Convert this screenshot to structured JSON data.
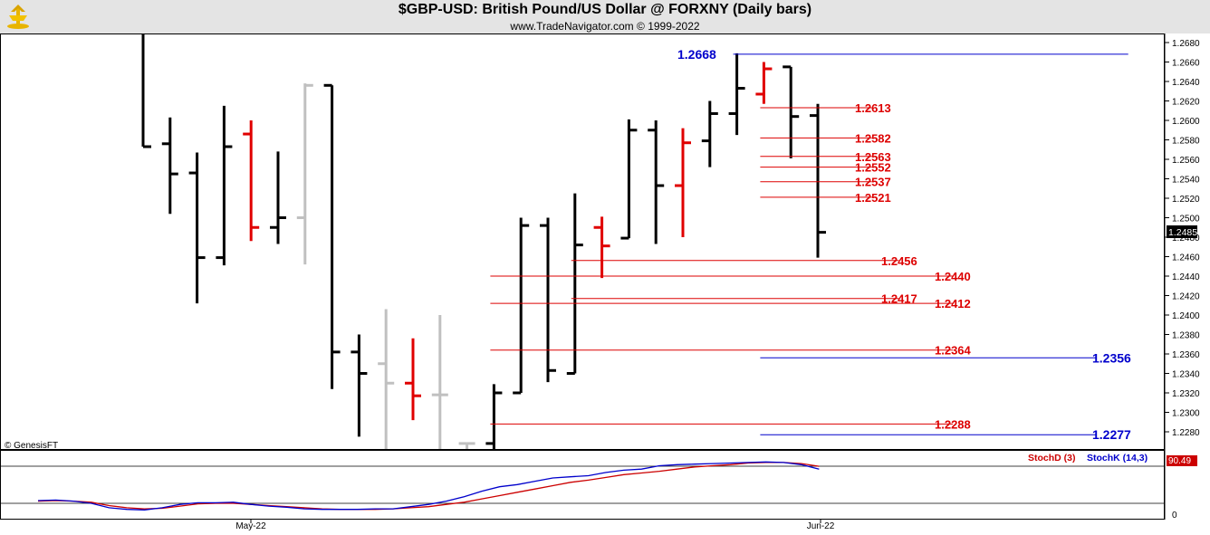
{
  "title": "$GBP-USD:  British Pound/US Dollar @ FORXNY  (Daily bars)",
  "subtitle": "www.TradeNavigator.com © 1999-2022",
  "watermark": "© GenesisFT",
  "colors": {
    "up_bar": "#000000",
    "down_bar": "#e00000",
    "inactive_bar": "#c0c0c0",
    "red_level": "#dd0000",
    "blue_level": "#0000cc",
    "stoch_d": "#cc0000",
    "stoch_k": "#0000cc"
  },
  "chart_data": [
    {
      "type": "ohlc",
      "instrument": "$GBP-USD",
      "ylim": [
        1.227,
        1.269
      ],
      "y_ticks": [
        "1.2280",
        "1.2300",
        "1.2320",
        "1.2340",
        "1.2360",
        "1.2380",
        "1.2400",
        "1.2420",
        "1.2440",
        "1.2460",
        "1.2480",
        "1.2500",
        "1.2520",
        "1.2540",
        "1.2560",
        "1.2580",
        "1.2600",
        "1.2620",
        "1.2640",
        "1.2660",
        "1.2680"
      ],
      "x_labels": [
        "May-22",
        "Jun-22"
      ],
      "last_price": "1.2485",
      "bars": [
        {
          "o": 1.269,
          "h": 1.269,
          "l": 1.2573,
          "c": 1.2573,
          "color": "black"
        },
        {
          "o": 1.2576,
          "h": 1.2603,
          "l": 1.2504,
          "c": 1.2545,
          "color": "black"
        },
        {
          "o": 1.2546,
          "h": 1.2567,
          "l": 1.2412,
          "c": 1.2459,
          "color": "black"
        },
        {
          "o": 1.2459,
          "h": 1.2615,
          "l": 1.2451,
          "c": 1.2573,
          "color": "black"
        },
        {
          "o": 1.2586,
          "h": 1.26,
          "l": 1.2476,
          "c": 1.249,
          "color": "red"
        },
        {
          "o": 1.249,
          "h": 1.2568,
          "l": 1.2473,
          "c": 1.25,
          "color": "black"
        },
        {
          "o": 1.25,
          "h": 1.2638,
          "l": 1.2452,
          "c": 1.2636,
          "color": "grey"
        },
        {
          "o": 1.2636,
          "h": 1.2636,
          "l": 1.2324,
          "c": 1.2362,
          "color": "black"
        },
        {
          "o": 1.2362,
          "h": 1.238,
          "l": 1.2275,
          "c": 1.234,
          "color": "black"
        },
        {
          "o": 1.235,
          "h": 1.2406,
          "l": 1.226,
          "c": 1.233,
          "color": "grey"
        },
        {
          "o": 1.233,
          "h": 1.2376,
          "l": 1.2292,
          "c": 1.2317,
          "color": "red"
        },
        {
          "o": 1.2318,
          "h": 1.24,
          "l": 1.226,
          "c": 1.2318,
          "color": "grey"
        },
        {
          "o": 1.2268,
          "h": 1.2268,
          "l": 1.2256,
          "c": 1.2268,
          "color": "grey"
        },
        {
          "o": 1.2268,
          "h": 1.2329,
          "l": 1.224,
          "c": 1.232,
          "color": "black"
        },
        {
          "o": 1.232,
          "h": 1.25,
          "l": 1.232,
          "c": 1.2492,
          "color": "black"
        },
        {
          "o": 1.2492,
          "h": 1.25,
          "l": 1.2331,
          "c": 1.2343,
          "color": "black"
        },
        {
          "o": 1.234,
          "h": 1.2525,
          "l": 1.234,
          "c": 1.2472,
          "color": "black"
        },
        {
          "o": 1.249,
          "h": 1.2501,
          "l": 1.2438,
          "c": 1.2471,
          "color": "red"
        },
        {
          "o": 1.2479,
          "h": 1.2601,
          "l": 1.2479,
          "c": 1.259,
          "color": "black"
        },
        {
          "o": 1.259,
          "h": 1.26,
          "l": 1.2473,
          "c": 1.2533,
          "color": "black"
        },
        {
          "o": 1.2533,
          "h": 1.2592,
          "l": 1.248,
          "c": 1.2577,
          "color": "red"
        },
        {
          "o": 1.2579,
          "h": 1.262,
          "l": 1.2552,
          "c": 1.2607,
          "color": "black"
        },
        {
          "o": 1.2607,
          "h": 1.2669,
          "l": 1.2585,
          "c": 1.2633,
          "color": "black"
        },
        {
          "o": 1.2627,
          "h": 1.266,
          "l": 1.2617,
          "c": 1.2653,
          "color": "red"
        },
        {
          "o": 1.2655,
          "h": 1.2655,
          "l": 1.2561,
          "c": 1.2604,
          "color": "black"
        },
        {
          "o": 1.2605,
          "h": 1.2617,
          "l": 1.2459,
          "c": 1.2485,
          "color": "black"
        }
      ],
      "levels": [
        {
          "label": "1.2668",
          "value": 1.2668,
          "color": "blue",
          "from_bar": 22,
          "to_bar": 36.5
        },
        {
          "label": "1.2613",
          "value": 1.2613,
          "color": "red",
          "from_bar": 23,
          "to_bar": 27
        },
        {
          "label": "1.2582",
          "value": 1.2582,
          "color": "red",
          "from_bar": 23,
          "to_bar": 27
        },
        {
          "label": "1.2563",
          "value": 1.2563,
          "color": "red",
          "from_bar": 23,
          "to_bar": 27
        },
        {
          "label": "1.2552",
          "value": 1.2552,
          "color": "red",
          "from_bar": 23,
          "to_bar": 27
        },
        {
          "label": "1.2537",
          "value": 1.2537,
          "color": "red",
          "from_bar": 23,
          "to_bar": 27
        },
        {
          "label": "1.2521",
          "value": 1.2521,
          "color": "red",
          "from_bar": 23,
          "to_bar": 27
        },
        {
          "label": "1.2456",
          "value": 1.2456,
          "color": "red",
          "from_bar": 16,
          "to_bar": 28
        },
        {
          "label": "1.2440",
          "value": 1.244,
          "color": "red",
          "from_bar": 13,
          "to_bar": 30
        },
        {
          "label": "1.2417",
          "value": 1.2417,
          "color": "red",
          "from_bar": 16,
          "to_bar": 28
        },
        {
          "label": "1.2412",
          "value": 1.2412,
          "color": "red",
          "from_bar": 13,
          "to_bar": 30
        },
        {
          "label": "1.2364",
          "value": 1.2364,
          "color": "red",
          "from_bar": 13,
          "to_bar": 30
        },
        {
          "label": "1.2356",
          "value": 1.2356,
          "color": "blue",
          "from_bar": 23,
          "to_bar": 35.3
        },
        {
          "label": "1.2288",
          "value": 1.2288,
          "color": "red",
          "from_bar": 13,
          "to_bar": 30
        },
        {
          "label": "1.2277",
          "value": 1.2277,
          "color": "blue",
          "from_bar": 23,
          "to_bar": 35.3
        }
      ]
    },
    {
      "type": "line",
      "indicator": "Stochastic",
      "ylim": [
        0,
        100
      ],
      "y_ticks": [
        "0",
        "90.49"
      ],
      "series": [
        {
          "name": "StochD (3)",
          "color": "red",
          "values": [
            22,
            23,
            22,
            20,
            14,
            10,
            8,
            9,
            13,
            17,
            18,
            18,
            16,
            14,
            12,
            10,
            8,
            7,
            7,
            7,
            8,
            10,
            12,
            16,
            20,
            26,
            32,
            38,
            44,
            50,
            56,
            60,
            65,
            70,
            73,
            76,
            80,
            84,
            86,
            88,
            91,
            92,
            92,
            90,
            85
          ]
        },
        {
          "name": "StochK (14,3)",
          "color": "blue",
          "values": [
            23,
            24,
            22,
            18,
            10,
            7,
            6,
            10,
            16,
            19,
            19,
            20,
            16,
            13,
            11,
            8,
            7,
            7,
            7,
            8,
            8,
            12,
            16,
            22,
            30,
            40,
            48,
            52,
            58,
            64,
            66,
            68,
            74,
            78,
            80,
            86,
            88,
            89,
            90,
            91,
            92,
            93,
            92,
            88,
            80
          ]
        }
      ]
    }
  ]
}
